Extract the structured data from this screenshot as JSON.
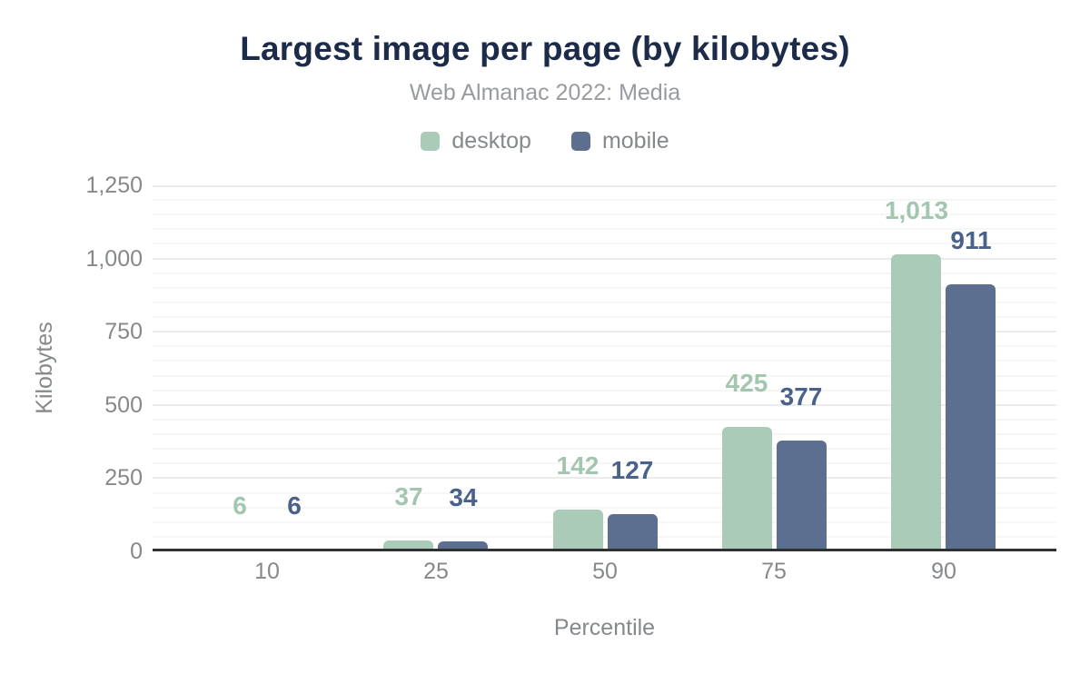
{
  "page": {
    "background_color": "#ffffff"
  },
  "header": {
    "title": "Largest image per page (by kilobytes)",
    "subtitle": "Web Almanac 2022: Media",
    "title_color": "#1b2b49",
    "subtitle_color": "#989ca0"
  },
  "chart_data": {
    "type": "bar",
    "title": "Largest image per page (by kilobytes)",
    "subtitle": "Web Almanac 2022: Media",
    "categories": [
      "10",
      "25",
      "50",
      "75",
      "90"
    ],
    "series": [
      {
        "name": "desktop",
        "values": [
          6,
          37,
          142,
          425,
          1013
        ],
        "value_labels": [
          "6",
          "37",
          "142",
          "425",
          "1,013"
        ],
        "color": "#a9cbb7",
        "label_color": "#a2c6b0"
      },
      {
        "name": "mobile",
        "values": [
          6,
          34,
          127,
          377,
          911
        ],
        "value_labels": [
          "6",
          "34",
          "127",
          "377",
          "911"
        ],
        "color": "#5d6f90",
        "label_color": "#4a628b"
      }
    ],
    "xlabel": "Percentile",
    "ylabel": "Kilobytes",
    "ylim": [
      0,
      1250
    ],
    "yticks": [
      {
        "value": 0,
        "label": "0"
      },
      {
        "value": 250,
        "label": "250"
      },
      {
        "value": 500,
        "label": "500"
      },
      {
        "value": 750,
        "label": "750"
      },
      {
        "value": 1000,
        "label": "1,000"
      },
      {
        "value": 1250,
        "label": "1,250"
      }
    ],
    "minor_tick_step": 50,
    "grid": "horizontal",
    "legend_position": "top",
    "axis_text_color": "#85898c",
    "grid_major_color": "#ebebeb",
    "grid_minor_color": "#f6f6f6",
    "axis_line_color": "#2f3133"
  }
}
